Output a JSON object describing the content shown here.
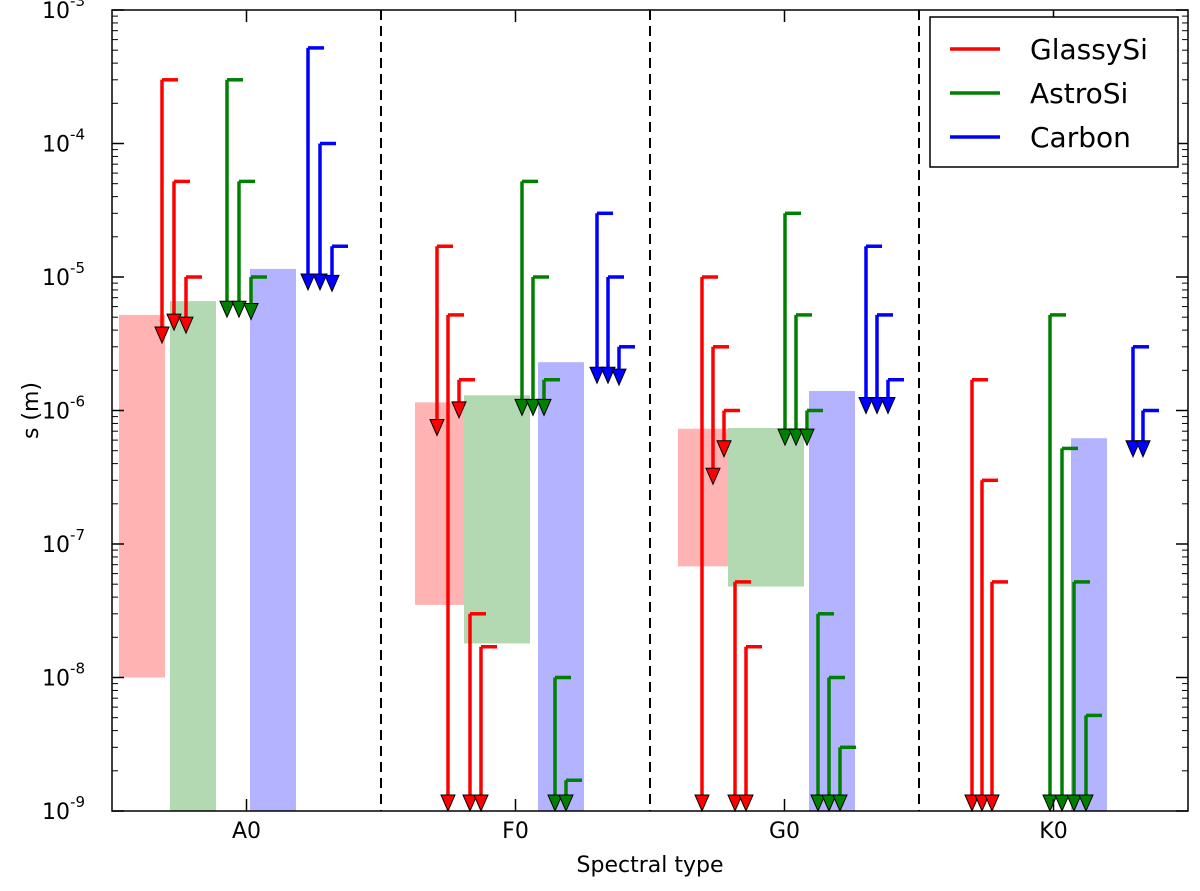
{
  "chart_data": {
    "type": "bar",
    "title": "",
    "xlabel": "Spectral type",
    "ylabel": "s (m)",
    "yscale": "log",
    "ylim_exponents": [
      -9,
      -3
    ],
    "yticks": [
      {
        "base": "10",
        "exp": "-9"
      },
      {
        "base": "10",
        "exp": "-8"
      },
      {
        "base": "10",
        "exp": "-7"
      },
      {
        "base": "10",
        "exp": "-6"
      },
      {
        "base": "10",
        "exp": "-5"
      },
      {
        "base": "10",
        "exp": "-4"
      },
      {
        "base": "10",
        "exp": "-3"
      }
    ],
    "categories": [
      "A0",
      "F0",
      "G0",
      "K0"
    ],
    "legend": {
      "position": "top-right",
      "entries": [
        {
          "name": "GlassySi",
          "color": "#ff0000"
        },
        {
          "name": "AstroSi",
          "color": "#008000"
        },
        {
          "name": "Carbon",
          "color": "#0000ff"
        }
      ]
    },
    "series": [
      {
        "name": "GlassySi",
        "color": "#ff0000",
        "bar_color": "#ffb3b3",
        "groups": [
          {
            "category": "A0",
            "range": [
              1e-08,
              5.2e-06
            ],
            "limits": [
              [
                0.0003,
                3.2e-06
              ],
              [
                5.2e-05,
                4e-06
              ],
              [
                1e-05,
                3.8e-06
              ]
            ]
          },
          {
            "category": "F0",
            "range": [
              3.5e-08,
              1.15e-06
            ],
            "limits": [
              [
                1.7e-05,
                6.5e-07
              ],
              [
                5.2e-06,
                1e-09
              ],
              [
                1.7e-06,
                8.8e-07
              ],
              [
                3e-08,
                1e-09
              ],
              [
                1.7e-08,
                1e-09
              ]
            ]
          },
          {
            "category": "G0",
            "range": [
              6.8e-08,
              7.3e-07
            ],
            "limits": [
              [
                1e-05,
                1e-09
              ],
              [
                3e-06,
                2.8e-07
              ],
              [
                1e-06,
                4.5e-07
              ],
              [
                5.2e-08,
                1e-09
              ],
              [
                1.7e-08,
                1e-09
              ]
            ]
          },
          {
            "category": "K0",
            "range": null,
            "limits": [
              [
                1.7e-06,
                1e-09
              ],
              [
                3e-07,
                1e-09
              ],
              [
                5.2e-08,
                1e-09
              ]
            ]
          }
        ]
      },
      {
        "name": "AstroSi",
        "color": "#008000",
        "bar_color": "#b3d9b3",
        "groups": [
          {
            "category": "A0",
            "range": [
              1e-09,
              6.6e-06
            ],
            "limits": [
              [
                0.0003,
                5e-06
              ],
              [
                5.2e-05,
                5e-06
              ],
              [
                1e-05,
                4.8e-06
              ]
            ]
          },
          {
            "category": "F0",
            "range": [
              1.8e-08,
              1.3e-06
            ],
            "limits": [
              [
                5.2e-05,
                9.2e-07
              ],
              [
                1e-05,
                9.2e-07
              ],
              [
                1.7e-06,
                9.2e-07
              ],
              [
                1e-08,
                1e-09
              ],
              [
                1.7e-09,
                1e-09
              ]
            ]
          },
          {
            "category": "G0",
            "range": [
              4.8e-08,
              7.4e-07
            ],
            "limits": [
              [
                3e-05,
                5.5e-07
              ],
              [
                5.2e-06,
                5.5e-07
              ],
              [
                1e-06,
                5.5e-07
              ],
              [
                3e-08,
                1e-09
              ],
              [
                1e-08,
                1e-09
              ],
              [
                3e-09,
                1e-09
              ]
            ]
          },
          {
            "category": "K0",
            "range": null,
            "limits": [
              [
                5.2e-06,
                1e-09
              ],
              [
                5.2e-07,
                1e-09
              ],
              [
                5.2e-08,
                1e-09
              ],
              [
                5.2e-09,
                1e-09
              ]
            ]
          }
        ]
      },
      {
        "name": "Carbon",
        "color": "#0000ff",
        "bar_color": "#b3b3ff",
        "groups": [
          {
            "category": "A0",
            "range": [
              1e-09,
              1.15e-05
            ],
            "limits": [
              [
                0.00052,
                8e-06
              ],
              [
                0.0001,
                8e-06
              ],
              [
                1.7e-05,
                7.8e-06
              ]
            ]
          },
          {
            "category": "F0",
            "range": [
              1e-09,
              2.3e-06
            ],
            "limits": [
              [
                3e-05,
                1.6e-06
              ],
              [
                1e-05,
                1.6e-06
              ],
              [
                3e-06,
                1.55e-06
              ]
            ]
          },
          {
            "category": "G0",
            "range": [
              1e-09,
              1.4e-06
            ],
            "limits": [
              [
                1.7e-05,
                9.5e-07
              ],
              [
                5.2e-06,
                9.5e-07
              ],
              [
                1.7e-06,
                9.5e-07
              ]
            ]
          },
          {
            "category": "K0",
            "range": [
              1e-09,
              6.2e-07
            ],
            "limits": [
              [
                3e-06,
                4.5e-07
              ],
              [
                1e-06,
                4.5e-07
              ]
            ]
          }
        ]
      }
    ]
  }
}
